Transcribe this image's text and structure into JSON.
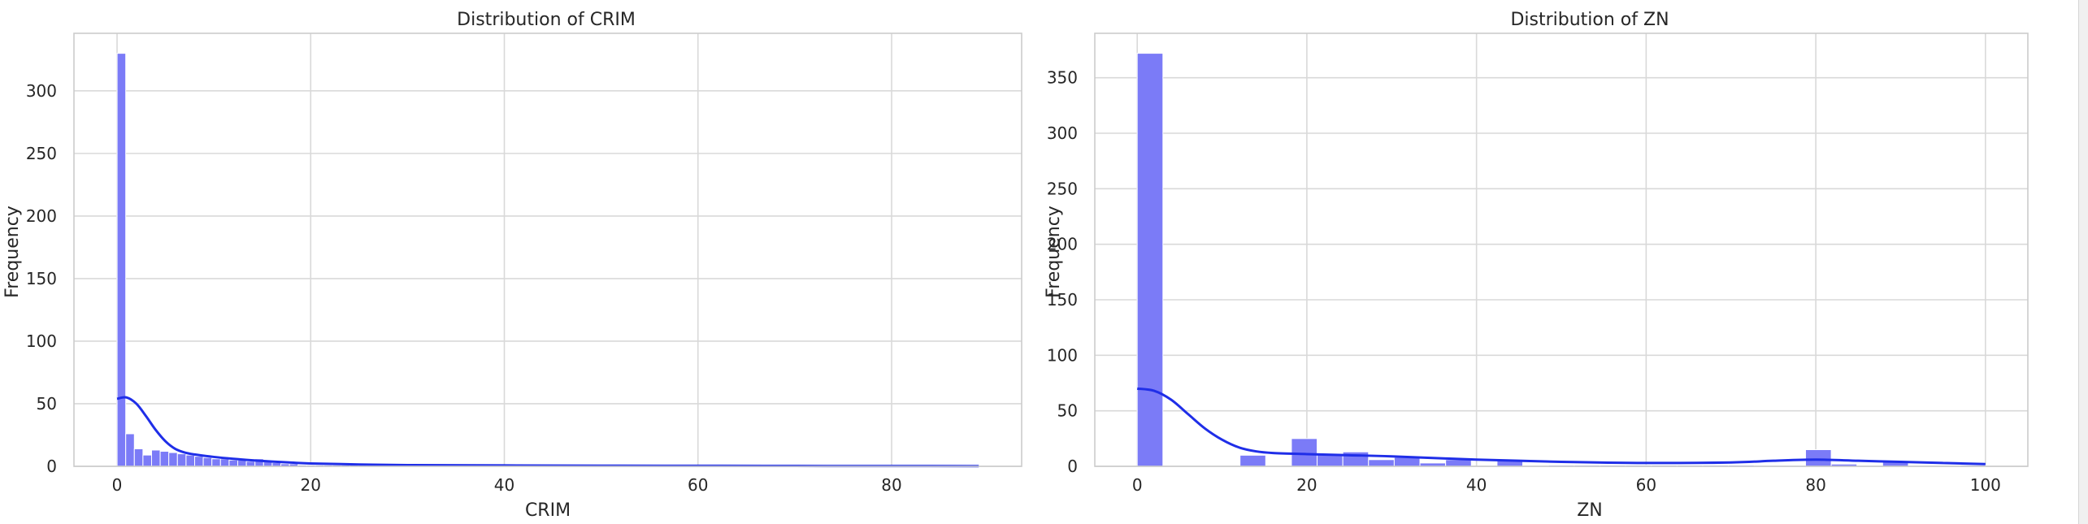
{
  "colors": {
    "bar": "#7b7bf7",
    "bar_edge": "#ffffff",
    "kde": "#1f2ee8",
    "grid": "#d9d9d9",
    "text": "#262626"
  },
  "chart_data": [
    {
      "type": "bar",
      "title": "Distribution of CRIM",
      "xlabel": "CRIM",
      "ylabel": "Frequency",
      "xlim": [
        -4.45,
        93.43
      ],
      "ylim": [
        0,
        346
      ],
      "xticks": [
        0,
        20,
        40,
        60,
        80
      ],
      "yticks": [
        0,
        50,
        100,
        150,
        200,
        250,
        300
      ],
      "grid": true,
      "legend": "none",
      "bins": {
        "edges": [
          0.006,
          0.896,
          1.786,
          2.676,
          3.566,
          4.456,
          5.346,
          6.236,
          7.126,
          8.016,
          8.906,
          9.796,
          10.686,
          11.576,
          12.466,
          13.356,
          14.246,
          15.136,
          16.026,
          16.916,
          17.806,
          18.696,
          19.586,
          20.476,
          21.366,
          22.256,
          23.146,
          24.036,
          24.926,
          25.816,
          26.706,
          27.596,
          28.486,
          29.376,
          30.266,
          31.156,
          32.046,
          32.936,
          33.826,
          34.716,
          35.606,
          36.496,
          37.386,
          38.276,
          39.166,
          40.056,
          40.946,
          41.836,
          42.726,
          43.616,
          44.506,
          45.396,
          46.286,
          47.176,
          48.066,
          48.956,
          49.846,
          50.736,
          51.626,
          52.516,
          53.406,
          54.296,
          55.186,
          56.076,
          56.966,
          57.856,
          58.746,
          59.636,
          60.526,
          61.416,
          62.306,
          63.196,
          64.086,
          64.976,
          65.866,
          66.756,
          67.646,
          68.536,
          69.426,
          70.316,
          71.206,
          72.096,
          72.986,
          73.876,
          74.766,
          75.656,
          76.546,
          77.436,
          78.326,
          79.216,
          80.106,
          80.996,
          81.886,
          82.776,
          83.666,
          84.556,
          85.446,
          86.336,
          87.226,
          88.116,
          89.006
        ],
        "counts": [
          330,
          26,
          14,
          9,
          13,
          12,
          11,
          10,
          9,
          8,
          7,
          6,
          6,
          5,
          5,
          4,
          6,
          4,
          3,
          2,
          2,
          1,
          1,
          1,
          1,
          1,
          1,
          2,
          1,
          1,
          1,
          1,
          0,
          1,
          0,
          1,
          0,
          0,
          0,
          1,
          0,
          0,
          0,
          0,
          0,
          1,
          1,
          0,
          0,
          0,
          0,
          0,
          0,
          0,
          0,
          0,
          0,
          0,
          0,
          0,
          0,
          0,
          0,
          0,
          0,
          0,
          0,
          0,
          0,
          0,
          0,
          1,
          0,
          0,
          0,
          1,
          0,
          0,
          0,
          0,
          0,
          0,
          0,
          0,
          0,
          0,
          0,
          0,
          0,
          0,
          0,
          0,
          0,
          0,
          0,
          0,
          0,
          0,
          0,
          1
        ]
      },
      "kde": {
        "x": [
          0,
          1,
          2,
          3,
          4,
          5,
          6,
          7,
          8,
          10,
          12,
          14,
          16,
          18,
          20,
          25,
          30,
          40,
          50,
          60,
          70,
          80,
          89
        ],
        "y": [
          54,
          55,
          50,
          40,
          29,
          20,
          14,
          11,
          9.5,
          7.5,
          6,
          4.8,
          3.8,
          3,
          2.3,
          1.5,
          1,
          0.7,
          0.5,
          0.4,
          0.3,
          0.25,
          0.2
        ]
      }
    },
    {
      "type": "bar",
      "title": "Distribution of ZN",
      "xlabel": "ZN",
      "ylabel": "Frequency",
      "xlim": [
        -5,
        105
      ],
      "ylim": [
        0,
        390
      ],
      "xticks": [
        0,
        20,
        40,
        60,
        80,
        100
      ],
      "yticks": [
        0,
        50,
        100,
        150,
        200,
        250,
        300,
        350
      ],
      "grid": true,
      "legend": "none",
      "bins": {
        "edges": [
          0,
          3.03,
          6.06,
          9.09,
          12.12,
          15.15,
          18.18,
          21.21,
          24.24,
          27.27,
          30.3,
          33.33,
          36.36,
          39.39,
          42.42,
          45.45,
          48.48,
          51.52,
          54.55,
          57.58,
          60.61,
          63.64,
          66.67,
          69.7,
          72.73,
          75.76,
          78.79,
          81.82,
          84.85,
          87.88,
          90.91,
          93.94,
          96.97,
          100
        ],
        "counts": [
          372,
          0,
          0,
          0,
          10,
          0,
          25,
          11,
          13,
          6,
          8,
          3,
          6,
          0,
          5,
          0,
          1,
          1,
          1,
          1,
          1,
          1,
          1,
          1,
          0,
          0,
          15,
          2,
          0,
          4,
          0,
          0,
          1
        ]
      },
      "kde": {
        "x": [
          0,
          2,
          4,
          6,
          8,
          10,
          12,
          14,
          16,
          20,
          25,
          30,
          40,
          50,
          60,
          70,
          75,
          80,
          85,
          90,
          95,
          100
        ],
        "y": [
          70,
          68,
          60,
          47,
          34,
          24,
          17,
          13.5,
          12,
          11,
          10,
          9,
          6,
          4,
          3,
          3.5,
          5,
          6,
          5,
          4,
          3,
          2
        ]
      }
    }
  ]
}
